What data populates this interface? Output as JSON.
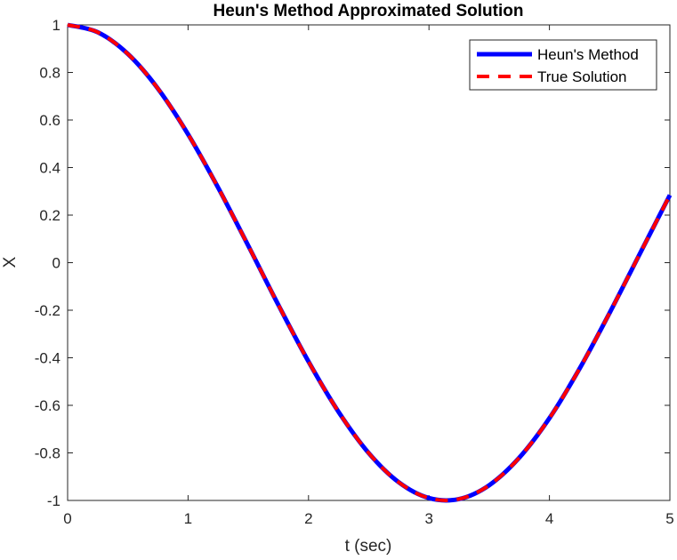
{
  "chart_data": {
    "type": "line",
    "title": "Heun's Method Approximated Solution",
    "xlabel": "t (sec)",
    "ylabel": "X",
    "xlim": [
      0,
      5
    ],
    "ylim": [
      -1,
      1
    ],
    "xticks": [
      "0",
      "1",
      "2",
      "3",
      "4",
      "5"
    ],
    "yticks": [
      "-1",
      "-0.8",
      "-0.6",
      "-0.4",
      "-0.2",
      "0",
      "0.2",
      "0.4",
      "0.6",
      "0.8",
      "1"
    ],
    "grid": false,
    "legend_position": "top-right",
    "x": [
      0,
      0.25,
      0.5,
      0.75,
      1.0,
      1.25,
      1.5,
      1.75,
      2.0,
      2.25,
      2.5,
      2.75,
      3.0,
      3.25,
      3.5,
      3.75,
      4.0,
      4.25,
      4.5,
      4.75,
      5.0
    ],
    "series": [
      {
        "name": "Heun's Method",
        "color": "#0000ff",
        "style": "solid",
        "values": [
          1.0,
          0.969,
          0.878,
          0.732,
          0.54,
          0.315,
          0.071,
          -0.178,
          -0.416,
          -0.628,
          -0.801,
          -0.924,
          -0.99,
          -0.994,
          -0.936,
          -0.82,
          -0.654,
          -0.446,
          -0.211,
          0.037,
          0.284
        ]
      },
      {
        "name": "True Solution",
        "color": "#ff0000",
        "style": "dashed",
        "values": [
          1.0,
          0.969,
          0.878,
          0.732,
          0.54,
          0.315,
          0.071,
          -0.178,
          -0.416,
          -0.628,
          -0.801,
          -0.924,
          -0.99,
          -0.994,
          -0.936,
          -0.82,
          -0.654,
          -0.446,
          -0.211,
          0.037,
          0.284
        ]
      }
    ]
  }
}
